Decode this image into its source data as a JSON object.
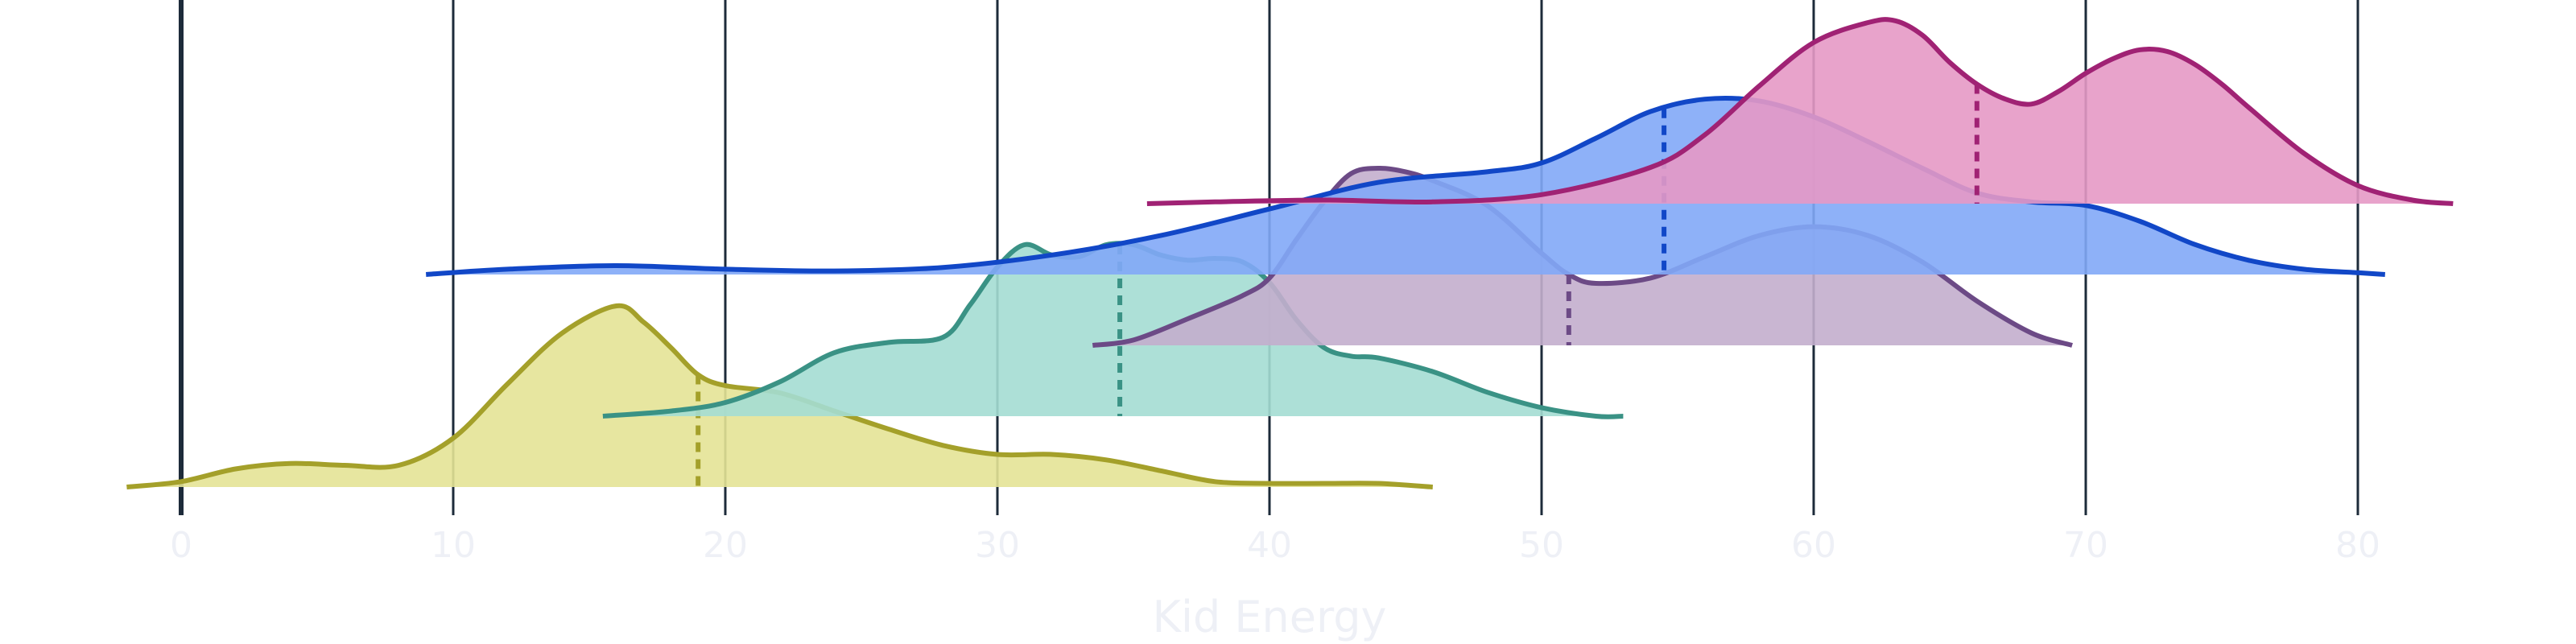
{
  "chart_data": {
    "type": "ridgeline",
    "title": "",
    "xlabel": "Kid Energy",
    "ylabel": "",
    "xlim": [
      -2,
      84
    ],
    "x_ticks": [
      0,
      10,
      20,
      30,
      40,
      50,
      60,
      70,
      80
    ],
    "x_tick_labels": [
      "0",
      "10",
      "20",
      "30",
      "40",
      "50",
      "60",
      "70",
      "80"
    ],
    "grid": "vertical",
    "legend": "none",
    "series": [
      {
        "color": "#a4a02a",
        "fill": "#e4e396",
        "mean": 19,
        "x": [
          -2,
          0,
          2,
          4,
          6,
          8,
          10,
          12,
          14,
          16,
          17,
          18,
          19,
          20,
          22,
          24,
          26,
          28,
          30,
          32,
          34,
          36,
          38,
          40,
          42,
          44,
          46
        ],
        "density": [
          0.0,
          0.03,
          0.1,
          0.13,
          0.12,
          0.12,
          0.27,
          0.57,
          0.85,
          1.0,
          0.91,
          0.77,
          0.62,
          0.56,
          0.52,
          0.42,
          0.32,
          0.23,
          0.18,
          0.18,
          0.15,
          0.09,
          0.03,
          0.02,
          0.02,
          0.02,
          0.0
        ]
      },
      {
        "color": "#3a9285",
        "fill": "#a4ddd3",
        "mean": 34.5,
        "x": [
          15.5,
          18,
          20,
          22,
          24,
          26,
          28,
          29,
          30,
          31,
          32,
          33,
          34,
          35,
          36,
          37,
          38,
          39,
          40,
          41,
          42,
          43,
          44,
          46,
          48,
          50,
          52,
          53
        ],
        "density": [
          0.0,
          0.03,
          0.08,
          0.2,
          0.37,
          0.43,
          0.46,
          0.65,
          0.87,
          1.0,
          0.94,
          0.93,
          1.0,
          1.0,
          0.94,
          0.91,
          0.92,
          0.9,
          0.78,
          0.56,
          0.4,
          0.35,
          0.34,
          0.26,
          0.14,
          0.05,
          0.0,
          0.0
        ]
      },
      {
        "color": "#6c4a86",
        "fill": "#c3aecd",
        "mean": 51,
        "x": [
          33.5,
          35,
          37,
          39,
          40,
          41,
          42,
          43,
          44,
          45,
          46,
          48,
          50,
          51,
          52,
          54,
          56,
          58,
          60,
          62,
          64,
          66,
          68,
          69.5
        ],
        "density": [
          0.0,
          0.03,
          0.15,
          0.28,
          0.38,
          0.6,
          0.81,
          0.97,
          1.0,
          0.98,
          0.93,
          0.79,
          0.52,
          0.4,
          0.35,
          0.38,
          0.5,
          0.62,
          0.67,
          0.62,
          0.47,
          0.25,
          0.07,
          0.0
        ]
      },
      {
        "color": "#1147c7",
        "fill": "#82a8f7",
        "mean": 54.5,
        "x": [
          9,
          12,
          16,
          20,
          24,
          28,
          32,
          36,
          40,
          44,
          48,
          50,
          52,
          54,
          56,
          58,
          60,
          62,
          64,
          66,
          68,
          70,
          72,
          74,
          76,
          78,
          80,
          81
        ],
        "density": [
          0.0,
          0.03,
          0.05,
          0.03,
          0.02,
          0.04,
          0.11,
          0.22,
          0.37,
          0.52,
          0.58,
          0.63,
          0.77,
          0.92,
          0.99,
          0.98,
          0.89,
          0.75,
          0.6,
          0.46,
          0.41,
          0.39,
          0.3,
          0.17,
          0.08,
          0.03,
          0.01,
          0.0
        ]
      },
      {
        "color": "#a02274",
        "fill": "#e599c5",
        "mean": 66,
        "x": [
          35.5,
          38,
          42,
          46,
          50,
          54,
          56,
          58,
          60,
          62,
          63,
          64,
          65,
          66,
          67,
          68,
          69,
          70,
          71,
          72,
          73,
          74,
          75,
          76,
          78,
          80,
          82,
          83.5
        ],
        "density": [
          0.0,
          0.01,
          0.02,
          0.01,
          0.05,
          0.2,
          0.38,
          0.65,
          0.89,
          1.0,
          1.01,
          0.93,
          0.78,
          0.66,
          0.58,
          0.55,
          0.62,
          0.72,
          0.8,
          0.85,
          0.84,
          0.77,
          0.66,
          0.53,
          0.28,
          0.1,
          0.02,
          0.0
        ]
      }
    ]
  }
}
